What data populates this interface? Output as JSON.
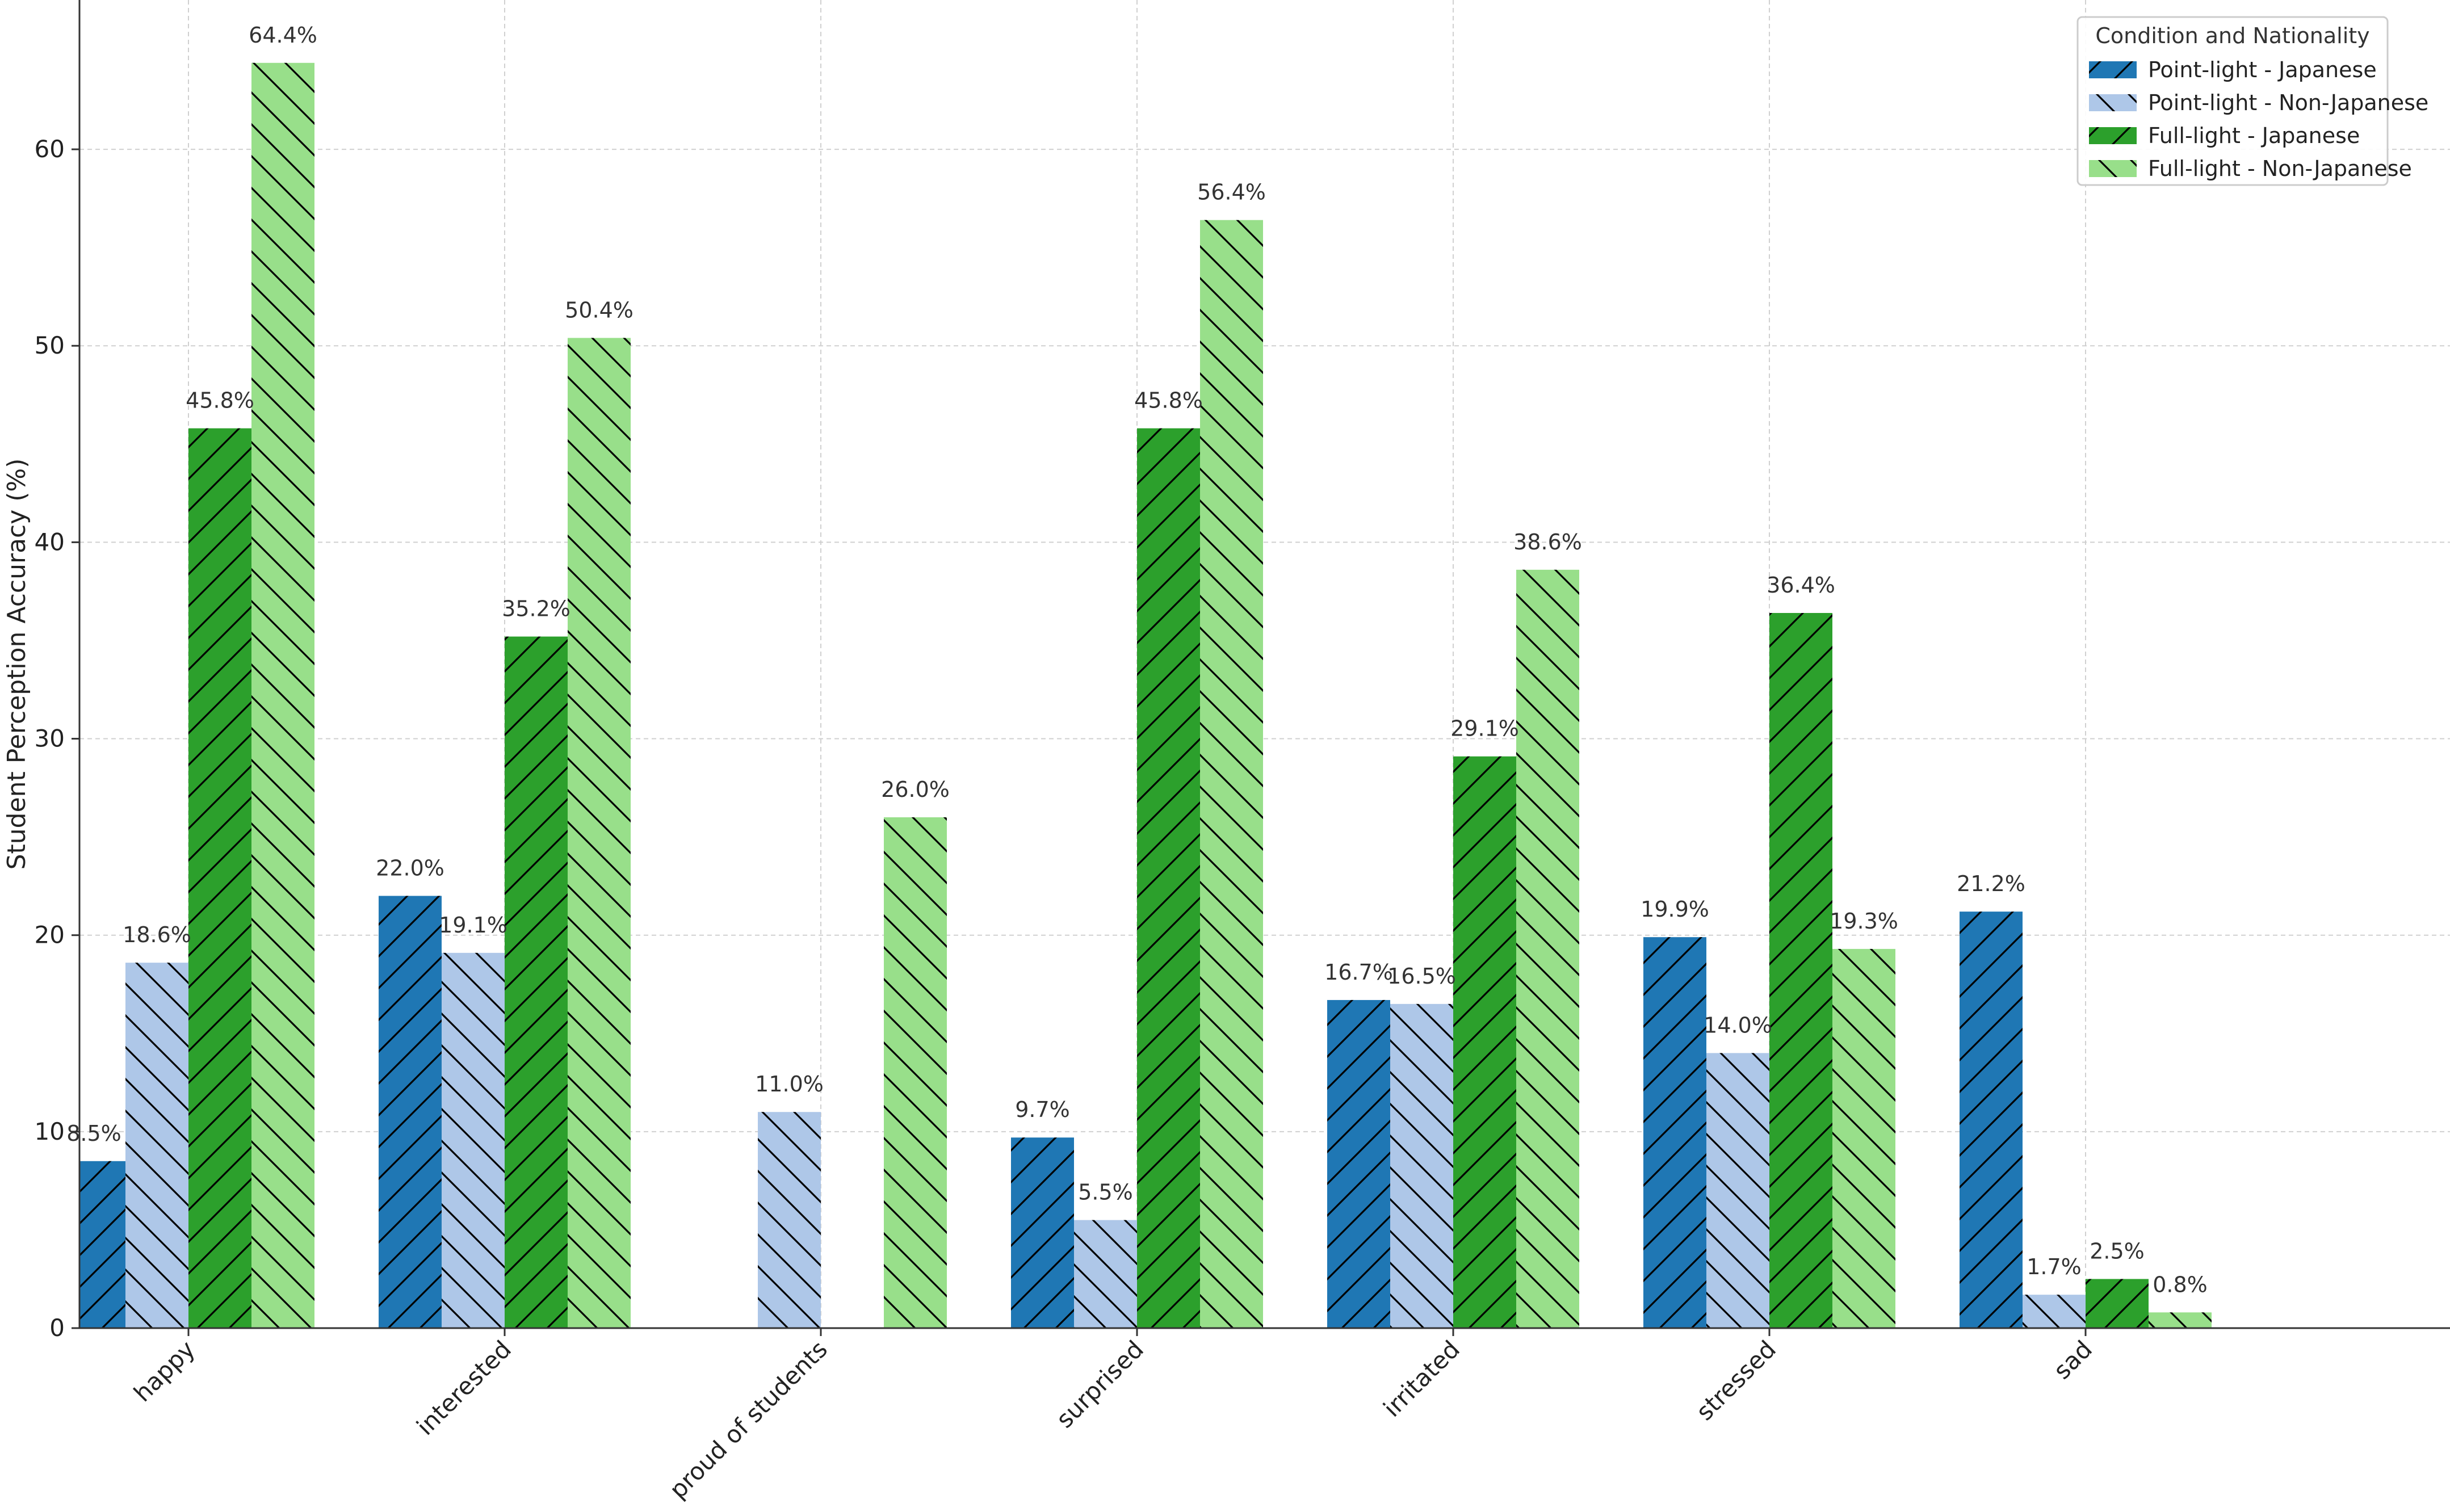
{
  "chart_data": {
    "type": "bar",
    "title": "",
    "xlabel": "",
    "ylabel": "Student Perception Accuracy (%)",
    "ylim": [
      0,
      67.6
    ],
    "yticks": [
      0,
      10,
      20,
      30,
      40,
      50,
      60
    ],
    "grid": true,
    "legend_position": "top-right",
    "legend_title": "Condition and Nationality",
    "categories": [
      "happy",
      "interested",
      "proud of students",
      "surprised",
      "irritated",
      "stressed",
      "sad"
    ],
    "series": [
      {
        "name": "Point-light - Japanese",
        "color": "#1f77b4",
        "hatch": "forward",
        "values": [
          8.5,
          22.0,
          null,
          9.7,
          16.7,
          19.9,
          21.2
        ],
        "labels": [
          "8.5%",
          "22.0%",
          "",
          "9.7%",
          "16.7%",
          "19.9%",
          "21.2%"
        ]
      },
      {
        "name": "Point-light - Non-Japanese",
        "color": "#aec7e8",
        "hatch": "back",
        "values": [
          18.6,
          19.1,
          11.0,
          5.5,
          16.5,
          14.0,
          1.7
        ],
        "labels": [
          "18.6%",
          "19.1%",
          "11.0%",
          "5.5%",
          "16.5%",
          "14.0%",
          "1.7%"
        ]
      },
      {
        "name": "Full-light - Japanese",
        "color": "#2ca02c",
        "hatch": "forward",
        "values": [
          45.8,
          35.2,
          null,
          45.8,
          29.1,
          36.4,
          2.5
        ],
        "labels": [
          "45.8%",
          "35.2%",
          "",
          "45.8%",
          "29.1%",
          "36.4%",
          "2.5%"
        ]
      },
      {
        "name": "Full-light - Non-Japanese",
        "color": "#98df8a",
        "hatch": "back",
        "values": [
          64.4,
          50.4,
          26.0,
          56.4,
          38.6,
          19.3,
          0.8
        ],
        "labels": [
          "64.4%",
          "50.4%",
          "26.0%",
          "56.4%",
          "38.6%",
          "19.3%",
          "0.8%"
        ]
      }
    ]
  }
}
